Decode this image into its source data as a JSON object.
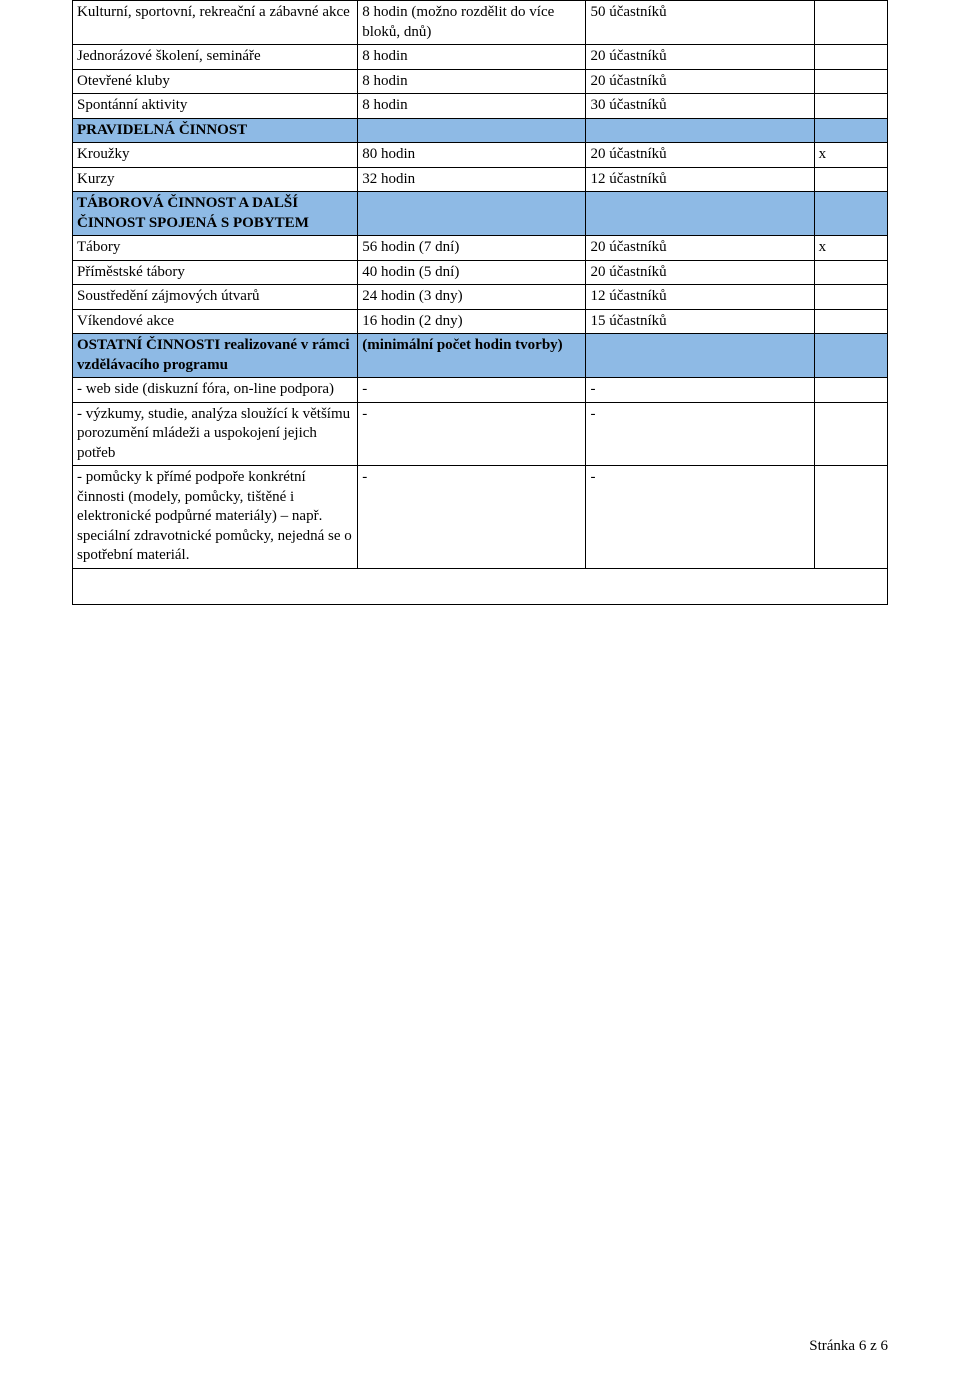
{
  "colors": {
    "section_bg": "#8ebae5",
    "border": "#000000",
    "text": "#000000",
    "page_bg": "#ffffff"
  },
  "rows": {
    "r1": {
      "c1": "Kulturní, sportovní, rekreační a zábavné akce",
      "c2": "8 hodin (možno rozdělit do více bloků, dnů)",
      "c3": "50 účastníků",
      "c4": ""
    },
    "r2": {
      "c1": "Jednorázové školení, semináře",
      "c2": "8 hodin",
      "c3": "20 účastníků",
      "c4": ""
    },
    "r3": {
      "c1": "Otevřené kluby",
      "c2": "8 hodin",
      "c3": "20 účastníků",
      "c4": ""
    },
    "r4": {
      "c1": "Spontánní aktivity",
      "c2": "8 hodin",
      "c3": "30 účastníků",
      "c4": ""
    },
    "sec1": "PRAVIDELNÁ ČINNOST",
    "r5": {
      "c1": "Kroužky",
      "c2": "80  hodin",
      "c3": "20  účastníků",
      "c4": "x"
    },
    "r6": {
      "c1": "Kurzy",
      "c2": "32 hodin",
      "c3": "12 účastníků",
      "c4": ""
    },
    "sec2": "TÁBOROVÁ ČINNOST A DALŠÍ ČINNOST SPOJENÁ S POBYTEM",
    "r7": {
      "c1": "Tábory",
      "c2": "56 hodin (7 dní)",
      "c3": "20 účastníků",
      "c4": "x"
    },
    "r8": {
      "c1": "Příměstské tábory",
      "c2": "40 hodin (5 dní)",
      "c3": "20 účastníků",
      "c4": ""
    },
    "r9": {
      "c1": "Soustředění zájmových útvarů",
      "c2": "24 hodin (3 dny)",
      "c3": "12 účastníků",
      "c4": ""
    },
    "r10": {
      "c1": "Víkendové akce",
      "c2": "16 hodin (2 dny)",
      "c3": "15 účastníků",
      "c4": ""
    },
    "sec3a": "OSTATNÍ ČINNOSTI realizované v rámci vzdělávacího programu",
    "sec3b": "(minimální počet hodin tvorby)",
    "r11": {
      "c1": "- web side (diskuzní fóra, on-line podpora)",
      "c2": "-",
      "c3": "-",
      "c4": ""
    },
    "r12": {
      "c1": "- výzkumy, studie, analýza sloužící k většímu porozumění mládeži a uspokojení jejich potřeb",
      "c2": "-",
      "c3": "-",
      "c4": ""
    },
    "r13": {
      "c1": "- pomůcky k přímé podpoře konkrétní činnosti (modely, pomůcky, tištěné i elektronické podpůrné materiály) – např. speciální zdravotnické pomůcky, nejedná se o spotřební materiál.",
      "c2": "-",
      "c3": "-",
      "c4": ""
    }
  },
  "footer": "Stránka 6 z 6"
}
